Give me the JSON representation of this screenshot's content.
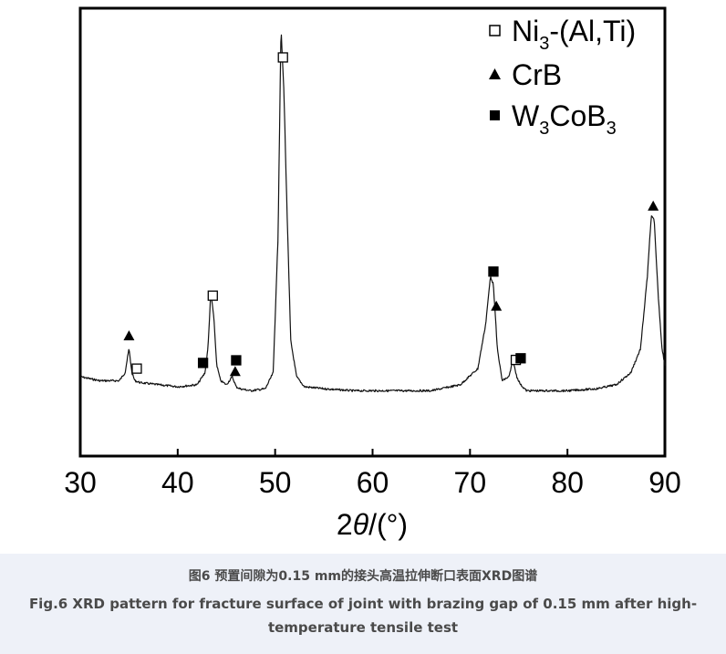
{
  "chart_data": {
    "type": "line",
    "xlabel_prefix": "2",
    "xlabel_theta": "θ",
    "xlabel_suffix": "/(°)",
    "ylabel": "",
    "xlim": [
      30,
      90
    ],
    "x_ticks": [
      30,
      40,
      50,
      60,
      70,
      80,
      90
    ],
    "y_axis": "intensity (a.u., unlabeled, no ticks)",
    "grid": false,
    "legend_position": "top-right",
    "legend": [
      {
        "marker": "open-square",
        "base": "Ni",
        "sub": "3",
        "rest": "-(Al,Ti)"
      },
      {
        "marker": "filled-triangle",
        "base": "CrB",
        "sub": "",
        "rest": ""
      },
      {
        "marker": "filled-square",
        "parts": [
          "W",
          "3",
          "CoB",
          "3"
        ]
      }
    ],
    "series": [
      {
        "x": [
          30,
          32,
          34,
          34.6,
          35.0,
          35.3,
          35.6,
          36.2,
          38,
          40,
          42,
          42.8,
          43.1,
          43.4,
          43.7,
          44.0,
          44.4,
          45.0,
          45.6,
          46.0,
          46.4,
          47.5,
          49.0,
          49.8,
          50.3,
          50.6,
          50.9,
          51.2,
          51.6,
          52.2,
          53,
          55,
          58,
          62,
          66,
          69,
          70.8,
          71.6,
          72.1,
          72.4,
          72.8,
          73.3,
          74.0,
          74.4,
          74.8,
          75.2,
          75.8,
          77,
          80,
          83,
          85,
          86.5,
          87.5,
          88.2,
          88.6,
          88.9,
          89.3,
          89.7,
          90
        ],
        "y": [
          5,
          4,
          4,
          6,
          12,
          6,
          4,
          3.5,
          3,
          2.5,
          3,
          6,
          12,
          26,
          20,
          8,
          4,
          3,
          5,
          2.5,
          2,
          1.5,
          2,
          6,
          40,
          92,
          76,
          48,
          14,
          5,
          2.5,
          2,
          1.5,
          1.5,
          1.5,
          3,
          7,
          18,
          30,
          28,
          12,
          4,
          5,
          9,
          5,
          3,
          1.5,
          1.5,
          1.5,
          2,
          3,
          6,
          12,
          30,
          45,
          44,
          26,
          12,
          8
        ]
      }
    ],
    "peak_markers": [
      {
        "x": 35.0,
        "marker": "filled-triangle"
      },
      {
        "x": 35.8,
        "marker": "open-square"
      },
      {
        "x": 42.6,
        "marker": "filled-square"
      },
      {
        "x": 43.6,
        "marker": "open-square"
      },
      {
        "x": 45.9,
        "marker": "filled-triangle"
      },
      {
        "x": 46.0,
        "marker": "filled-square"
      },
      {
        "x": 50.8,
        "marker": "open-square"
      },
      {
        "x": 72.4,
        "marker": "filled-square"
      },
      {
        "x": 72.7,
        "marker": "filled-triangle"
      },
      {
        "x": 74.7,
        "marker": "open-square"
      },
      {
        "x": 75.2,
        "marker": "filled-square"
      },
      {
        "x": 88.8,
        "marker": "filled-triangle"
      }
    ]
  },
  "caption": {
    "cn": "图6 预置间隙为0.15 mm的接头高温拉伸断口表面XRD图谱",
    "en": "Fig.6 XRD pattern for fracture surface of joint with brazing gap of 0.15 mm after high-temperature tensile test"
  }
}
